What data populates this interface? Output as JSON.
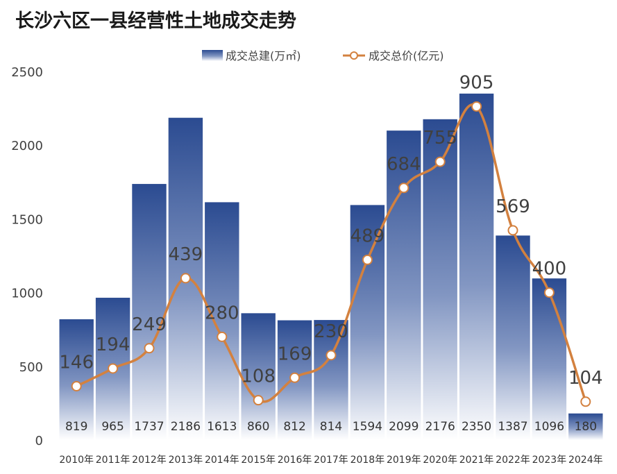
{
  "chart_data": {
    "type": "bar",
    "title": "长沙六区一县经营性土地成交走势",
    "categories": [
      "2010年",
      "2011年",
      "2012年",
      "2013年",
      "2014年",
      "2015年",
      "2016年",
      "2017年",
      "2018年",
      "2019年",
      "2020年",
      "2021年",
      "2022年",
      "2023年",
      "2024年"
    ],
    "series": [
      {
        "name": "成交总建(万㎡)",
        "type": "bar",
        "values": [
          819,
          965,
          1737,
          2186,
          1613,
          860,
          812,
          814,
          1594,
          2099,
          2176,
          2350,
          1387,
          1096,
          180
        ],
        "color_top": "#2b4b91",
        "color_bottom": "#ffffff"
      },
      {
        "name": "成交总价(亿元)",
        "type": "line",
        "values": [
          146,
          194,
          249,
          439,
          280,
          108,
          169,
          230,
          489,
          684,
          755,
          905,
          569,
          400,
          104
        ],
        "color": "#d3813f"
      }
    ],
    "y_ticks": [
      "0",
      "500",
      "1000",
      "1500",
      "2000",
      "2500"
    ],
    "ylim": [
      0,
      2500
    ],
    "grid": false,
    "legend_position": "top-center"
  }
}
